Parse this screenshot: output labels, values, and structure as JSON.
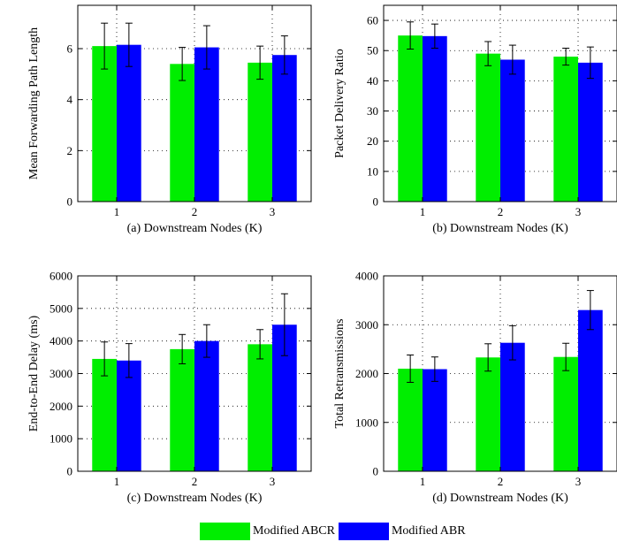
{
  "colors": {
    "Modified ABCR": "#00ee00",
    "Modified ABR": "#0000ff"
  },
  "legend": [
    "Modified ABCR",
    "Modified ABR"
  ],
  "chart_data": [
    {
      "type": "bar",
      "xlabel": "(a) Downstream Nodes (K)",
      "ylabel": "Mean Forwarding Path Length",
      "categories": [
        "1",
        "2",
        "3"
      ],
      "ylim": [
        0,
        7.7
      ],
      "yticks": [
        0,
        2,
        4,
        6
      ],
      "grid": true,
      "series": [
        {
          "name": "Modified ABCR",
          "values": [
            6.1,
            5.4,
            5.45
          ],
          "errors": [
            0.9,
            0.65,
            0.65
          ]
        },
        {
          "name": "Modified ABR",
          "values": [
            6.15,
            6.05,
            5.75
          ],
          "errors": [
            0.85,
            0.85,
            0.75
          ]
        }
      ]
    },
    {
      "type": "bar",
      "xlabel": "(b) Downstream Nodes (K)",
      "ylabel": "Packet Delivery Ratio",
      "categories": [
        "1",
        "2",
        "3"
      ],
      "ylim": [
        0,
        65
      ],
      "yticks": [
        0,
        10,
        20,
        30,
        40,
        50,
        60
      ],
      "grid": true,
      "series": [
        {
          "name": "Modified ABCR",
          "values": [
            55,
            49,
            48
          ],
          "errors": [
            4.5,
            4,
            2.8
          ]
        },
        {
          "name": "Modified ABR",
          "values": [
            54.8,
            47,
            46
          ],
          "errors": [
            4,
            4.8,
            5.2
          ]
        }
      ]
    },
    {
      "type": "bar",
      "xlabel": "(c) Downstream Nodes (K)",
      "ylabel": "End-to-End Delay (ms)",
      "categories": [
        "1",
        "2",
        "3"
      ],
      "ylim": [
        0,
        6000
      ],
      "yticks": [
        0,
        1000,
        2000,
        3000,
        4000,
        5000,
        6000
      ],
      "grid": true,
      "series": [
        {
          "name": "Modified ABCR",
          "values": [
            3450,
            3750,
            3900
          ],
          "errors": [
            520,
            450,
            450
          ]
        },
        {
          "name": "Modified ABR",
          "values": [
            3400,
            4000,
            4500
          ],
          "errors": [
            520,
            500,
            950
          ]
        }
      ]
    },
    {
      "type": "bar",
      "xlabel": "(d) Downstream Nodes (K)",
      "ylabel": "Total Retransmissions",
      "categories": [
        "1",
        "2",
        "3"
      ],
      "ylim": [
        0,
        4000
      ],
      "yticks": [
        0,
        1000,
        2000,
        3000,
        4000
      ],
      "grid": true,
      "series": [
        {
          "name": "Modified ABCR",
          "values": [
            2100,
            2330,
            2340
          ],
          "errors": [
            280,
            280,
            280
          ]
        },
        {
          "name": "Modified ABR",
          "values": [
            2090,
            2630,
            3300
          ],
          "errors": [
            250,
            350,
            400
          ]
        }
      ]
    }
  ]
}
